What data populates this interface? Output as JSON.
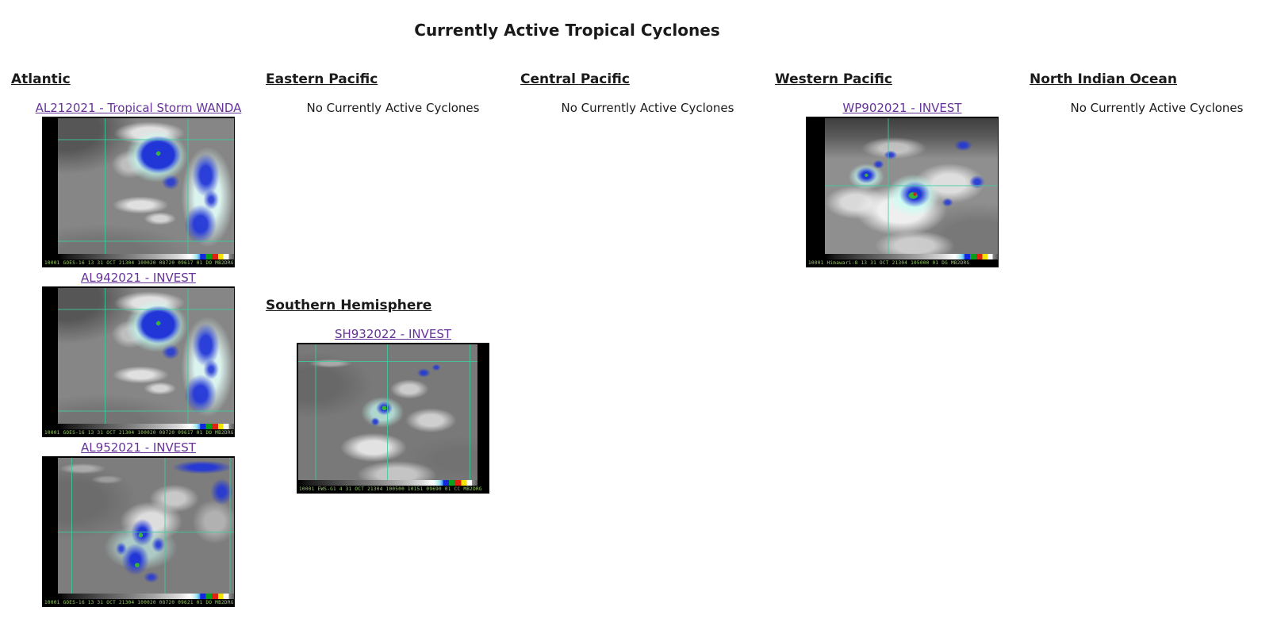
{
  "page": {
    "title": "Currently Active Tropical Cyclones"
  },
  "colors": {
    "link_purple": "#663399",
    "grid_line_teal": "#3ccda0"
  },
  "no_active_text": "No Currently Active Cyclones",
  "basins": {
    "atlantic": {
      "header": "Atlantic",
      "storms": [
        {
          "label": "AL212021 - Tropical Storm WANDA",
          "satellite": "GOES-16",
          "footer": "10001 GOES-16    13 31 OCT 21304 100020 08720 09617 01 DO    MB2DRG"
        },
        {
          "label": "AL942021 - INVEST",
          "satellite": "GOES-16",
          "footer": "10001 GOES-16    13 31 OCT 21304 100020 08720 09617 01 DO    MB2DRG"
        },
        {
          "label": "AL952021 - INVEST",
          "satellite": "GOES-16",
          "footer": "10001 GOES-16    13 31 OCT 21304 100020 08720 09621 01 DO    MB2DRG"
        }
      ]
    },
    "eastern_pacific": {
      "header": "Eastern Pacific",
      "status": "No Currently Active Cyclones"
    },
    "central_pacific": {
      "header": "Central Pacific",
      "status": "No Currently Active Cyclones"
    },
    "western_pacific": {
      "header": "Western Pacific",
      "storms": [
        {
          "label": "WP902021 - INVEST",
          "satellite": "Himawari-8",
          "footer": "10001 Himawari-8 13 31 OCT 21304 105000 01 DG    MB2DRG"
        }
      ]
    },
    "north_indian": {
      "header": "North Indian Ocean",
      "status": "No Currently Active Cyclones"
    },
    "southern_hemisphere": {
      "header": "Southern Hemisphere",
      "storms": [
        {
          "label": "SH932022 - INVEST",
          "satellite": "EWS-G1",
          "footer": "10001 EWS-G1    4 31 OCT 21304 100500 10151 09690 01 CC    MB2DRG"
        }
      ]
    }
  }
}
